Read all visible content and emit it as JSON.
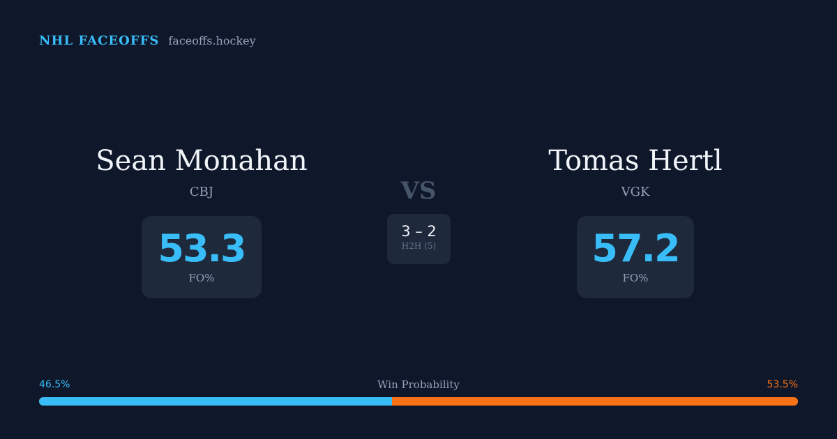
{
  "header": {
    "brand": "NHL FACEOFFS",
    "site": "faceoffs.hockey"
  },
  "player_left": {
    "name": "Sean Monahan",
    "team": "CBJ",
    "fo_pct": "53.3",
    "fo_label": "FO%"
  },
  "player_right": {
    "name": "Tomas Hertl",
    "team": "VGK",
    "fo_pct": "57.2",
    "fo_label": "FO%"
  },
  "matchup": {
    "vs": "VS",
    "h2h_score": "3 – 2",
    "h2h_label": "H2H (5)"
  },
  "win_probability": {
    "title": "Win Probability",
    "left_label": "46.5%",
    "right_label": "53.5%",
    "left_value": 46.5,
    "right_value": 53.5,
    "left_color": "#38bdf8",
    "right_color": "#f97316"
  }
}
